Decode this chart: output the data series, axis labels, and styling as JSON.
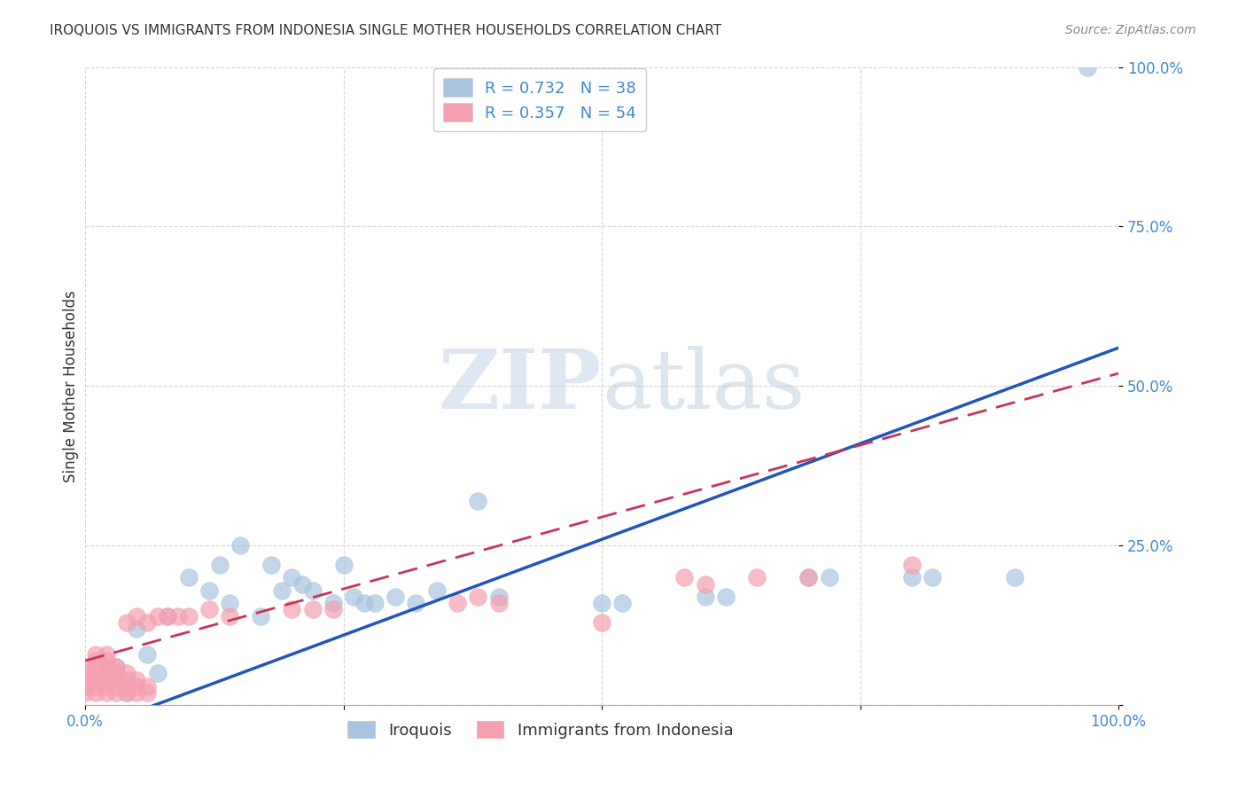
{
  "title": "IROQUOIS VS IMMIGRANTS FROM INDONESIA SINGLE MOTHER HOUSEHOLDS CORRELATION CHART",
  "source": "Source: ZipAtlas.com",
  "ylabel": "Single Mother Households",
  "watermark_zip": "ZIP",
  "watermark_atlas": "atlas",
  "iroquois_R": 0.732,
  "iroquois_N": 38,
  "indonesia_R": 0.357,
  "indonesia_N": 54,
  "iroquois_color": "#a8c4e0",
  "iroquois_line_color": "#2255bb",
  "indonesia_color": "#f4a0b0",
  "indonesia_line_color": "#cc3355",
  "xlim": [
    0.0,
    1.0
  ],
  "ylim": [
    0.0,
    1.0
  ],
  "xticks": [
    0.0,
    0.25,
    0.5,
    0.75,
    1.0
  ],
  "yticks": [
    0.0,
    0.25,
    0.5,
    0.75,
    1.0
  ],
  "ytick_labels": [
    "",
    "25.0%",
    "50.0%",
    "75.0%",
    "100.0%"
  ],
  "xtick_labels": [
    "0.0%",
    "",
    "",
    "",
    "100.0%"
  ],
  "iroquois_x": [
    0.97,
    0.02,
    0.03,
    0.04,
    0.05,
    0.06,
    0.07,
    0.08,
    0.1,
    0.12,
    0.13,
    0.14,
    0.15,
    0.17,
    0.18,
    0.19,
    0.2,
    0.21,
    0.22,
    0.24,
    0.25,
    0.26,
    0.27,
    0.28,
    0.3,
    0.32,
    0.34,
    0.38,
    0.4,
    0.5,
    0.52,
    0.6,
    0.62,
    0.7,
    0.72,
    0.8,
    0.82,
    0.9
  ],
  "iroquois_y": [
    1.0,
    0.04,
    0.06,
    0.02,
    0.12,
    0.08,
    0.05,
    0.14,
    0.2,
    0.18,
    0.22,
    0.16,
    0.25,
    0.14,
    0.22,
    0.18,
    0.2,
    0.19,
    0.18,
    0.16,
    0.22,
    0.17,
    0.16,
    0.16,
    0.17,
    0.16,
    0.18,
    0.32,
    0.17,
    0.16,
    0.16,
    0.17,
    0.17,
    0.2,
    0.2,
    0.2,
    0.2,
    0.2
  ],
  "indonesia_x": [
    0.0,
    0.0,
    0.0,
    0.0,
    0.0,
    0.01,
    0.01,
    0.01,
    0.01,
    0.01,
    0.01,
    0.01,
    0.02,
    0.02,
    0.02,
    0.02,
    0.02,
    0.02,
    0.02,
    0.03,
    0.03,
    0.03,
    0.03,
    0.03,
    0.04,
    0.04,
    0.04,
    0.04,
    0.04,
    0.05,
    0.05,
    0.05,
    0.05,
    0.06,
    0.06,
    0.06,
    0.07,
    0.08,
    0.09,
    0.1,
    0.12,
    0.14,
    0.2,
    0.22,
    0.24,
    0.36,
    0.38,
    0.4,
    0.5,
    0.58,
    0.6,
    0.65,
    0.7,
    0.8
  ],
  "indonesia_y": [
    0.02,
    0.03,
    0.04,
    0.05,
    0.06,
    0.02,
    0.03,
    0.04,
    0.05,
    0.06,
    0.07,
    0.08,
    0.02,
    0.03,
    0.04,
    0.05,
    0.06,
    0.07,
    0.08,
    0.02,
    0.03,
    0.04,
    0.05,
    0.06,
    0.02,
    0.03,
    0.04,
    0.05,
    0.13,
    0.02,
    0.03,
    0.04,
    0.14,
    0.02,
    0.03,
    0.13,
    0.14,
    0.14,
    0.14,
    0.14,
    0.15,
    0.14,
    0.15,
    0.15,
    0.15,
    0.16,
    0.17,
    0.16,
    0.13,
    0.2,
    0.19,
    0.2,
    0.2,
    0.22
  ],
  "iroq_slope": 0.6,
  "iroq_intercept": -0.04,
  "indo_slope": 0.45,
  "indo_intercept": 0.07
}
